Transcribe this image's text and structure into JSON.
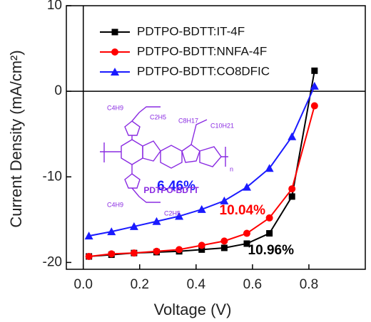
{
  "chart_data": {
    "type": "line",
    "x_label": "Voltage (V)",
    "y_label": "Current Density (mA/cm²)",
    "x": [
      0.02,
      0.1,
      0.18,
      0.26,
      0.34,
      0.42,
      0.5,
      0.58,
      0.66,
      0.74,
      0.82
    ],
    "series": [
      {
        "name": "PDTPO-BDTT:IT-4F",
        "color": "#000000",
        "marker": "square",
        "values": [
          -19.3,
          -19.1,
          -18.9,
          -18.8,
          -18.7,
          -18.5,
          -18.3,
          -17.8,
          -16.6,
          -12.3,
          2.4
        ]
      },
      {
        "name": "PDTPO-BDTT:NNFA-4F",
        "color": "#ff0000",
        "marker": "circle",
        "values": [
          -19.3,
          -19.0,
          -18.9,
          -18.7,
          -18.5,
          -18.0,
          -17.5,
          -16.6,
          -14.8,
          -11.4,
          -1.7
        ]
      },
      {
        "name": "PDTPO-BDTT:CO8DFIC",
        "color": "#1a1aff",
        "marker": "triangle",
        "values": [
          -16.9,
          -16.4,
          -15.8,
          -15.2,
          -14.6,
          -13.8,
          -12.8,
          -11.2,
          -9.0,
          -5.3,
          0.6
        ]
      }
    ],
    "annotations": [
      {
        "text": "6.46%",
        "color": "#1a1aff"
      },
      {
        "text": "10.04%",
        "color": "#ff0000"
      },
      {
        "text": "10.96%",
        "color": "#000000"
      }
    ],
    "inset": {
      "label": "PDTPO-BDTT",
      "groups": [
        "C4H9",
        "C2H5",
        "C8H17",
        "C10H21",
        "C4H9",
        "C2H5",
        "n"
      ]
    },
    "xlim": [
      -0.06,
      1.0
    ],
    "ylim": [
      -20.8,
      10
    ],
    "xticks": [
      {
        "value": 0,
        "label": "0.0"
      },
      0.2,
      0.4,
      0.6,
      0.8
    ],
    "yticks": [
      -20,
      -10,
      0,
      10
    ],
    "legend": "upper-left"
  }
}
